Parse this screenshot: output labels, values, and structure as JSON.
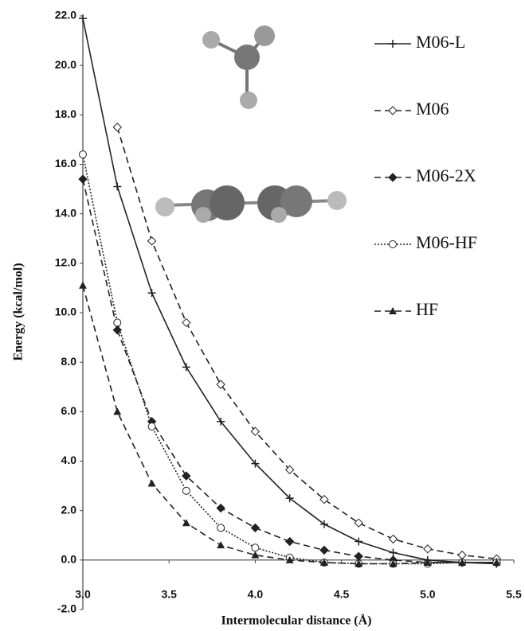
{
  "chart_data": {
    "type": "line",
    "xlabel": "Intermolecular distance (Å)",
    "ylabel": "Energy (kcal/mol)",
    "x": [
      3.0,
      3.2,
      3.4,
      3.6,
      3.8,
      4.0,
      4.2,
      4.4,
      4.6,
      4.8,
      5.0,
      5.2,
      5.4
    ],
    "xlim": [
      3.0,
      5.5
    ],
    "xticks": [
      {
        "value": 3,
        "label": "3.0"
      },
      3.5,
      {
        "value": 4,
        "label": "4.0"
      },
      4.5,
      {
        "value": 5,
        "label": "5.0"
      },
      5.5
    ],
    "ylim": [
      -2,
      22
    ],
    "yticks": [
      {
        "value": -2,
        "label": "-2.0"
      },
      {
        "value": 0,
        "label": "0.0"
      },
      {
        "value": 2,
        "label": "2.0"
      },
      {
        "value": 4,
        "label": "4.0"
      },
      {
        "value": 6,
        "label": "6.0"
      },
      {
        "value": 8,
        "label": "8.0"
      },
      {
        "value": 10,
        "label": "10.0"
      },
      {
        "value": 12,
        "label": "12.0"
      },
      {
        "value": 14,
        "label": "14.0"
      },
      {
        "value": 16,
        "label": "16.0"
      },
      {
        "value": 18,
        "label": "18.0"
      },
      {
        "value": 20,
        "label": "20.0"
      },
      {
        "value": 22,
        "label": "22.0"
      }
    ],
    "grid": false,
    "legend": "right",
    "series": [
      {
        "name": "M06-L",
        "color": "#222222",
        "line_style": "solid",
        "marker": "plus",
        "values": [
          21.9,
          15.1,
          10.8,
          7.8,
          5.6,
          3.9,
          2.5,
          1.45,
          0.75,
          0.3,
          0.0,
          -0.1,
          -0.15
        ]
      },
      {
        "name": "M06",
        "color": "#222222",
        "line_style": "dashed",
        "marker": "open-diamond",
        "values": [
          null,
          17.5,
          12.9,
          9.6,
          7.1,
          5.2,
          3.65,
          2.45,
          1.5,
          0.85,
          0.45,
          0.2,
          0.05
        ]
      },
      {
        "name": "M06-2X",
        "color": "#222222",
        "line_style": "dashed",
        "marker": "diamond",
        "values": [
          15.4,
          9.3,
          5.6,
          3.4,
          2.1,
          1.3,
          0.75,
          0.4,
          0.15,
          0.0,
          -0.1,
          -0.1,
          -0.1
        ]
      },
      {
        "name": "M06-HF",
        "color": "#222222",
        "line_style": "dotted",
        "marker": "open-circle",
        "values": [
          16.4,
          9.6,
          5.4,
          2.8,
          1.3,
          0.5,
          0.1,
          -0.1,
          -0.15,
          -0.15,
          -0.15,
          -0.1,
          -0.1
        ]
      },
      {
        "name": "HF",
        "color": "#222222",
        "line_style": "dashed",
        "marker": "triangle",
        "values": [
          11.1,
          6.0,
          3.1,
          1.5,
          0.6,
          0.2,
          0.0,
          -0.1,
          -0.15,
          -0.15,
          -0.1,
          -0.1,
          -0.1
        ]
      }
    ]
  }
}
